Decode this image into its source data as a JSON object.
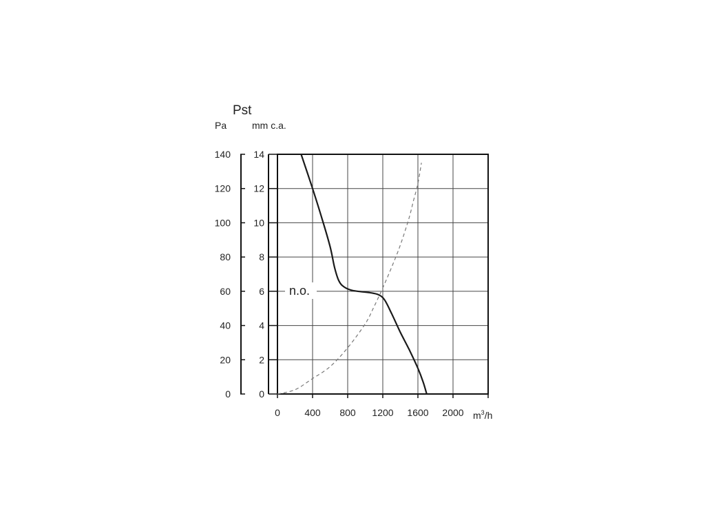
{
  "chart_data": {
    "type": "line",
    "title": "Pst",
    "left_unit": "Pa",
    "right_unit": "mm c.a.",
    "xlabel_main": "m",
    "xlabel_sup": "3",
    "xlabel_tail": "/h",
    "x_ticks": [
      0,
      400,
      800,
      1200,
      1600,
      2000
    ],
    "x_tick_labels": [
      "0",
      "400",
      "800",
      "1200",
      "1600",
      "2000"
    ],
    "xlim": [
      0,
      2400
    ],
    "ylim": [
      0,
      14
    ],
    "y_ticks": [
      0,
      2,
      4,
      6,
      8,
      10,
      12,
      14
    ],
    "y_tick_labels": [
      "0",
      "2",
      "4",
      "6",
      "8",
      "10",
      "12",
      "14"
    ],
    "pa_ticks": [
      0,
      20,
      40,
      60,
      80,
      100,
      120,
      140
    ],
    "pa_tick_labels": [
      "0",
      "20",
      "40",
      "60",
      "80",
      "100",
      "120",
      "140"
    ],
    "pa_lim": [
      0,
      140
    ],
    "grid": true,
    "annotation": {
      "text": "n.o.",
      "x": 0,
      "y": 6
    },
    "series": [
      {
        "style": "solid",
        "color": "#1a1a1a",
        "x": [
          270,
          400,
          510,
          600,
          650,
          700,
          760,
          850,
          950,
          1050,
          1150,
          1220,
          1300,
          1400,
          1500,
          1600,
          1660,
          1700
        ],
        "y": [
          14,
          12,
          10.2,
          8.6,
          7.4,
          6.6,
          6.25,
          6.05,
          5.98,
          5.92,
          5.8,
          5.5,
          4.7,
          3.6,
          2.6,
          1.5,
          0.7,
          0
        ]
      },
      {
        "style": "dashed",
        "color": "#777777",
        "x": [
          0,
          200,
          400,
          600,
          800,
          1000,
          1100,
          1200,
          1300,
          1400,
          1500,
          1550,
          1600,
          1640
        ],
        "y": [
          0,
          0.25,
          0.9,
          1.6,
          2.7,
          4.1,
          5.1,
          6.2,
          7.4,
          8.7,
          10.3,
          11.3,
          12.3,
          13.5
        ]
      }
    ]
  }
}
